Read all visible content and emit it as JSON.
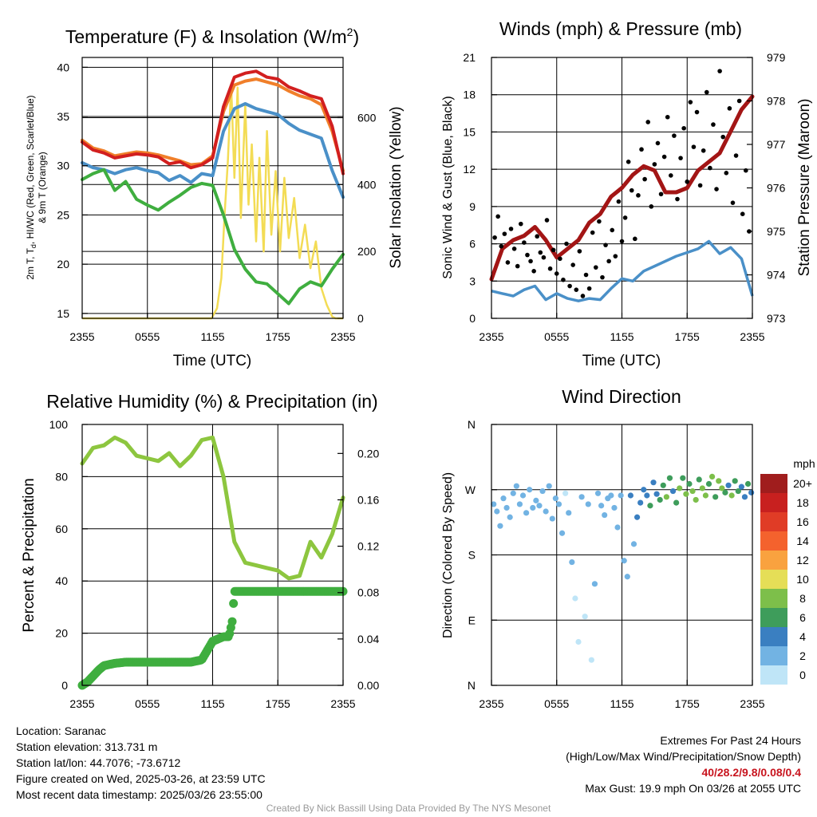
{
  "colors": {
    "temp": "#d21f1f",
    "dew": "#3fae3f",
    "wc": "#4a90c8",
    "t9m": "#f07f2a",
    "sun": "#f3dc55",
    "gust": "#000000",
    "wind": "#4a90c8",
    "pres": "#a31515",
    "rh": "#8dc63f",
    "precip": "#3fae3f"
  },
  "time_ticks": [
    "2355",
    "0555",
    "1155",
    "1755",
    "2355"
  ],
  "chart_data": [
    {
      "type": "line",
      "title": "Temperature (F) & Insolation (W/m",
      "title_sup": "2",
      "title_end": ")",
      "xlabel": "Time (UTC)",
      "ylabel_line1": "2m T, T",
      "ylabel_sub": "d",
      "ylabel_line1_end": ", HI/WC (Red, Green, Scarlet/Blue)",
      "ylabel_line2": "& 9m T (Orange)",
      "y2label": "Solar Insolation (Yellow)",
      "ylim": [
        14.5,
        41
      ],
      "y2lim": [
        0,
        780
      ],
      "yticks": [
        "15",
        "20",
        "25",
        "30",
        "35",
        "40"
      ],
      "y2ticks": [
        "0",
        "200",
        "400",
        "600"
      ],
      "x_hours": [
        0,
        1,
        2,
        3,
        4,
        5,
        6,
        7,
        8,
        9,
        10,
        11,
        12,
        13,
        14,
        15,
        16,
        17,
        18,
        19,
        20,
        21,
        22,
        23,
        24
      ],
      "series": [
        {
          "key": "t9m",
          "values": [
            32.6,
            31.8,
            31.5,
            31.0,
            31.2,
            31.4,
            31.3,
            31.1,
            30.8,
            30.5,
            30.1,
            30.2,
            31.0,
            35.5,
            38.2,
            38.6,
            38.8,
            38.5,
            38.2,
            37.6,
            37.1,
            36.8,
            36.2,
            33.5,
            29.5
          ]
        },
        {
          "key": "temp",
          "values": [
            32.4,
            31.6,
            31.3,
            30.8,
            31.0,
            31.2,
            31.1,
            30.9,
            30.2,
            30.4,
            29.8,
            30.1,
            30.8,
            36.0,
            39.0,
            39.4,
            39.6,
            39.0,
            38.8,
            38.0,
            37.6,
            37.1,
            36.8,
            34.0,
            29.2
          ]
        },
        {
          "key": "wc",
          "values": [
            30.3,
            29.8,
            29.6,
            29.2,
            29.6,
            29.8,
            29.5,
            29.3,
            28.5,
            29.0,
            28.3,
            29.2,
            29.0,
            33.5,
            35.8,
            36.3,
            35.8,
            35.5,
            35.2,
            34.3,
            33.6,
            33.2,
            32.8,
            29.5,
            26.8
          ]
        },
        {
          "key": "dew",
          "values": [
            28.6,
            29.2,
            29.6,
            27.5,
            28.4,
            26.6,
            26.0,
            25.5,
            26.3,
            27.0,
            27.8,
            28.2,
            28.0,
            25.0,
            21.5,
            19.5,
            18.2,
            18.0,
            17.0,
            16.0,
            17.5,
            18.2,
            17.8,
            19.5,
            21.0
          ]
        }
      ],
      "solar": {
        "x": [
          0,
          11.9,
          12.4,
          12.8,
          13.1,
          13.4,
          13.7,
          14.0,
          14.3,
          14.6,
          15.0,
          15.3,
          15.6,
          16.0,
          16.3,
          16.7,
          17.0,
          17.4,
          17.8,
          18.2,
          18.6,
          19.0,
          19.5,
          20.0,
          20.5,
          21.0,
          21.5,
          22.0,
          22.5,
          23.0,
          23.3,
          24
        ],
        "values": [
          0,
          0,
          30,
          120,
          310,
          470,
          700,
          420,
          690,
          300,
          640,
          340,
          520,
          230,
          480,
          200,
          560,
          250,
          440,
          200,
          420,
          240,
          360,
          180,
          280,
          150,
          230,
          90,
          40,
          5,
          0,
          0
        ]
      }
    },
    {
      "type": "line",
      "title": "Winds (mph) & Pressure (mb)",
      "xlabel": "Time (UTC)",
      "ylabel": "Sonic Wind & Gust (Blue, Black)",
      "y2label": "Station Pressure (Maroon)",
      "ylim": [
        0,
        21
      ],
      "y2lim": [
        973,
        979
      ],
      "yticks": [
        "0",
        "3",
        "6",
        "9",
        "12",
        "15",
        "18",
        "21"
      ],
      "y2ticks": [
        "973",
        "974",
        "975",
        "976",
        "977",
        "978",
        "979"
      ],
      "x_hours": [
        0,
        1,
        2,
        3,
        4,
        5,
        6,
        7,
        8,
        9,
        10,
        11,
        12,
        13,
        14,
        15,
        16,
        17,
        18,
        19,
        20,
        21,
        22,
        23,
        24
      ],
      "wind": [
        2.2,
        2.0,
        1.8,
        2.3,
        2.6,
        1.5,
        2.0,
        1.6,
        1.4,
        1.6,
        1.5,
        2.4,
        3.2,
        3.0,
        3.8,
        4.2,
        4.6,
        5.0,
        5.3,
        5.6,
        6.2,
        5.2,
        5.7,
        4.8,
        1.8
      ],
      "pressure": [
        973.9,
        974.6,
        974.8,
        974.9,
        975.1,
        974.8,
        974.4,
        974.6,
        974.8,
        975.2,
        975.4,
        975.8,
        976.0,
        976.3,
        976.5,
        976.4,
        975.9,
        975.9,
        976.0,
        976.4,
        976.6,
        976.8,
        977.3,
        977.8,
        978.1
      ],
      "gust_x": [
        0.3,
        0.6,
        0.9,
        1.2,
        1.5,
        1.8,
        2.1,
        2.4,
        2.7,
        3.0,
        3.3,
        3.6,
        3.9,
        4.2,
        4.5,
        4.8,
        5.1,
        5.4,
        5.7,
        6.0,
        6.3,
        6.6,
        6.9,
        7.2,
        7.5,
        7.8,
        8.1,
        8.4,
        8.7,
        9.0,
        9.3,
        9.6,
        9.9,
        10.2,
        10.5,
        10.8,
        11.1,
        11.4,
        11.7,
        12.0,
        12.3,
        12.6,
        12.9,
        13.2,
        13.5,
        13.8,
        14.1,
        14.4,
        14.7,
        15.0,
        15.3,
        15.6,
        15.9,
        16.2,
        16.5,
        16.8,
        17.1,
        17.4,
        17.7,
        18.0,
        18.3,
        18.6,
        18.9,
        19.2,
        19.5,
        19.8,
        20.1,
        20.4,
        20.7,
        21.0,
        21.3,
        21.6,
        21.9,
        22.2,
        22.5,
        22.8,
        23.1,
        23.4,
        23.7
      ],
      "gust": [
        6.5,
        8.2,
        5.8,
        6.8,
        4.5,
        7.2,
        5.6,
        4.2,
        7.6,
        6.1,
        5.1,
        4.6,
        3.8,
        6.6,
        5.3,
        4.9,
        7.9,
        4.0,
        5.5,
        3.6,
        4.8,
        3.1,
        6.0,
        2.6,
        4.3,
        2.3,
        5.4,
        1.8,
        3.5,
        2.4,
        6.9,
        4.1,
        7.8,
        3.3,
        5.9,
        4.6,
        7.1,
        5.0,
        9.4,
        6.2,
        8.1,
        12.6,
        10.3,
        6.4,
        9.9,
        13.6,
        11.2,
        15.8,
        9.0,
        12.4,
        14.1,
        10.0,
        13.0,
        16.2,
        11.5,
        14.7,
        9.6,
        12.9,
        15.3,
        11.0,
        17.4,
        13.8,
        16.6,
        10.7,
        13.5,
        18.2,
        12.1,
        15.6,
        10.4,
        19.9,
        14.6,
        11.7,
        16.9,
        9.3,
        13.1,
        17.5,
        8.4,
        11.9,
        7.0
      ]
    },
    {
      "type": "line",
      "title": "Relative Humidity (%) & Precipitation (in)",
      "ylabel": "Percent & Precipitation",
      "ylim": [
        0,
        100
      ],
      "y2lim": [
        0,
        0.225
      ],
      "yticks": [
        "0",
        "20",
        "40",
        "60",
        "80",
        "100"
      ],
      "y2ticks": [
        "0.00",
        "0.04",
        "0.08",
        "0.12",
        "0.16",
        "0.20"
      ],
      "x_hours": [
        0,
        1,
        2,
        3,
        4,
        5,
        6,
        7,
        8,
        9,
        10,
        11,
        12,
        13,
        14,
        15,
        16,
        17,
        18,
        19,
        20,
        21,
        22,
        23,
        24
      ],
      "rh": [
        85,
        91,
        92,
        95,
        93,
        88,
        87,
        86,
        89,
        84,
        88,
        94,
        95,
        80,
        55,
        47,
        46,
        45,
        44,
        41,
        42,
        55,
        49,
        58,
        72
      ],
      "precip_x": [
        0,
        0.5,
        1.0,
        1.5,
        2.0,
        3.0,
        4.0,
        6.0,
        8.0,
        10.0,
        11.0,
        11.5,
        12.0,
        13.0,
        13.5,
        13.8,
        14.0,
        16.0,
        18.0,
        20.0,
        22.0,
        24.0
      ],
      "precip": [
        0,
        0.003,
        0.008,
        0.013,
        0.017,
        0.019,
        0.02,
        0.02,
        0.02,
        0.02,
        0.022,
        0.03,
        0.038,
        0.042,
        0.042,
        0.055,
        0.081,
        0.081,
        0.081,
        0.081,
        0.081,
        0.081
      ]
    },
    {
      "type": "scatter",
      "title": "Wind Direction",
      "ylabel": "Direction (Colored By Speed)",
      "yticks": [
        "N",
        "E",
        "S",
        "W",
        "N"
      ],
      "ylim": [
        0,
        360
      ],
      "legend_title": "mph",
      "legend_labels": [
        "20+",
        "18",
        "16",
        "14",
        "12",
        "10",
        "8",
        "6",
        "4",
        "2",
        "0"
      ],
      "legend_colors": [
        "#a01d1d",
        "#c8201f",
        "#e03c26",
        "#f4622d",
        "#f9a23f",
        "#e5de57",
        "#7dbf4a",
        "#3e9d5b",
        "#3a7fc1",
        "#72b3e3",
        "#bfe5f7"
      ],
      "x": [
        0.2,
        0.5,
        0.8,
        1.1,
        1.4,
        1.7,
        2.0,
        2.3,
        2.6,
        2.9,
        3.2,
        3.5,
        3.8,
        4.1,
        4.4,
        4.7,
        5.0,
        5.3,
        5.6,
        5.9,
        6.2,
        6.5,
        6.8,
        7.1,
        7.4,
        7.7,
        8.0,
        8.3,
        8.6,
        8.9,
        9.2,
        9.5,
        9.8,
        10.1,
        10.4,
        10.7,
        11.0,
        11.3,
        11.6,
        11.9,
        12.2,
        12.5,
        12.8,
        13.1,
        13.4,
        13.7,
        14.0,
        14.3,
        14.6,
        14.9,
        15.2,
        15.5,
        15.8,
        16.1,
        16.4,
        16.7,
        17.0,
        17.3,
        17.6,
        17.9,
        18.2,
        18.5,
        18.8,
        19.1,
        19.4,
        19.7,
        20.0,
        20.3,
        20.6,
        20.9,
        21.2,
        21.5,
        21.8,
        22.1,
        22.4,
        22.7,
        23.0,
        23.3,
        23.6,
        23.9
      ],
      "dir": [
        250,
        240,
        220,
        258,
        245,
        232,
        265,
        275,
        250,
        262,
        238,
        270,
        245,
        255,
        248,
        268,
        240,
        275,
        230,
        258,
        250,
        210,
        265,
        238,
        170,
        120,
        60,
        260,
        95,
        250,
        35,
        140,
        265,
        248,
        235,
        258,
        262,
        245,
        218,
        262,
        172,
        150,
        262,
        195,
        232,
        252,
        270,
        262,
        248,
        280,
        264,
        256,
        276,
        260,
        286,
        268,
        252,
        272,
        286,
        264,
        278,
        268,
        256,
        284,
        272,
        262,
        278,
        288,
        260,
        282,
        272,
        266,
        276,
        262,
        282,
        268,
        274,
        260,
        278,
        266
      ],
      "speed": [
        1,
        2,
        1,
        1,
        2,
        1,
        2,
        2,
        1,
        1,
        2,
        1,
        1,
        2,
        1,
        1,
        2,
        2,
        1,
        1,
        2,
        1,
        0,
        1,
        1,
        0,
        0,
        1,
        0,
        1,
        0,
        1,
        2,
        1,
        2,
        1,
        1,
        2,
        1,
        2,
        2,
        1,
        3,
        2,
        3,
        4,
        4,
        3,
        5,
        3,
        4,
        6,
        5,
        7,
        6,
        4,
        5,
        7,
        6,
        8,
        5,
        7,
        8,
        6,
        7,
        8,
        6,
        7,
        5,
        8,
        7,
        6,
        4,
        7,
        5,
        6,
        4,
        3,
        5,
        3
      ]
    }
  ],
  "info": {
    "location": "Location: Saranac",
    "elevation": "Station elevation: 313.731 m",
    "latlon": "Station lat/lon: 44.7076; -73.6712",
    "created": "Figure created on Wed, 2025-03-26, at 23:59 UTC",
    "recent": "Most recent data timestamp: 2025/03/26 23:55:00"
  },
  "extremes": {
    "title": "Extremes For Past 24 Hours",
    "subtitle": "(High/Low/Max Wind/Precipitation/Snow Depth)",
    "values": "40/28.2/9.8/0.08/0.4",
    "gust": "Max Gust: 19.9 mph On 03/26 at 2055 UTC"
  },
  "credit": "Created By Nick Bassill Using Data Provided By The NYS Mesonet"
}
